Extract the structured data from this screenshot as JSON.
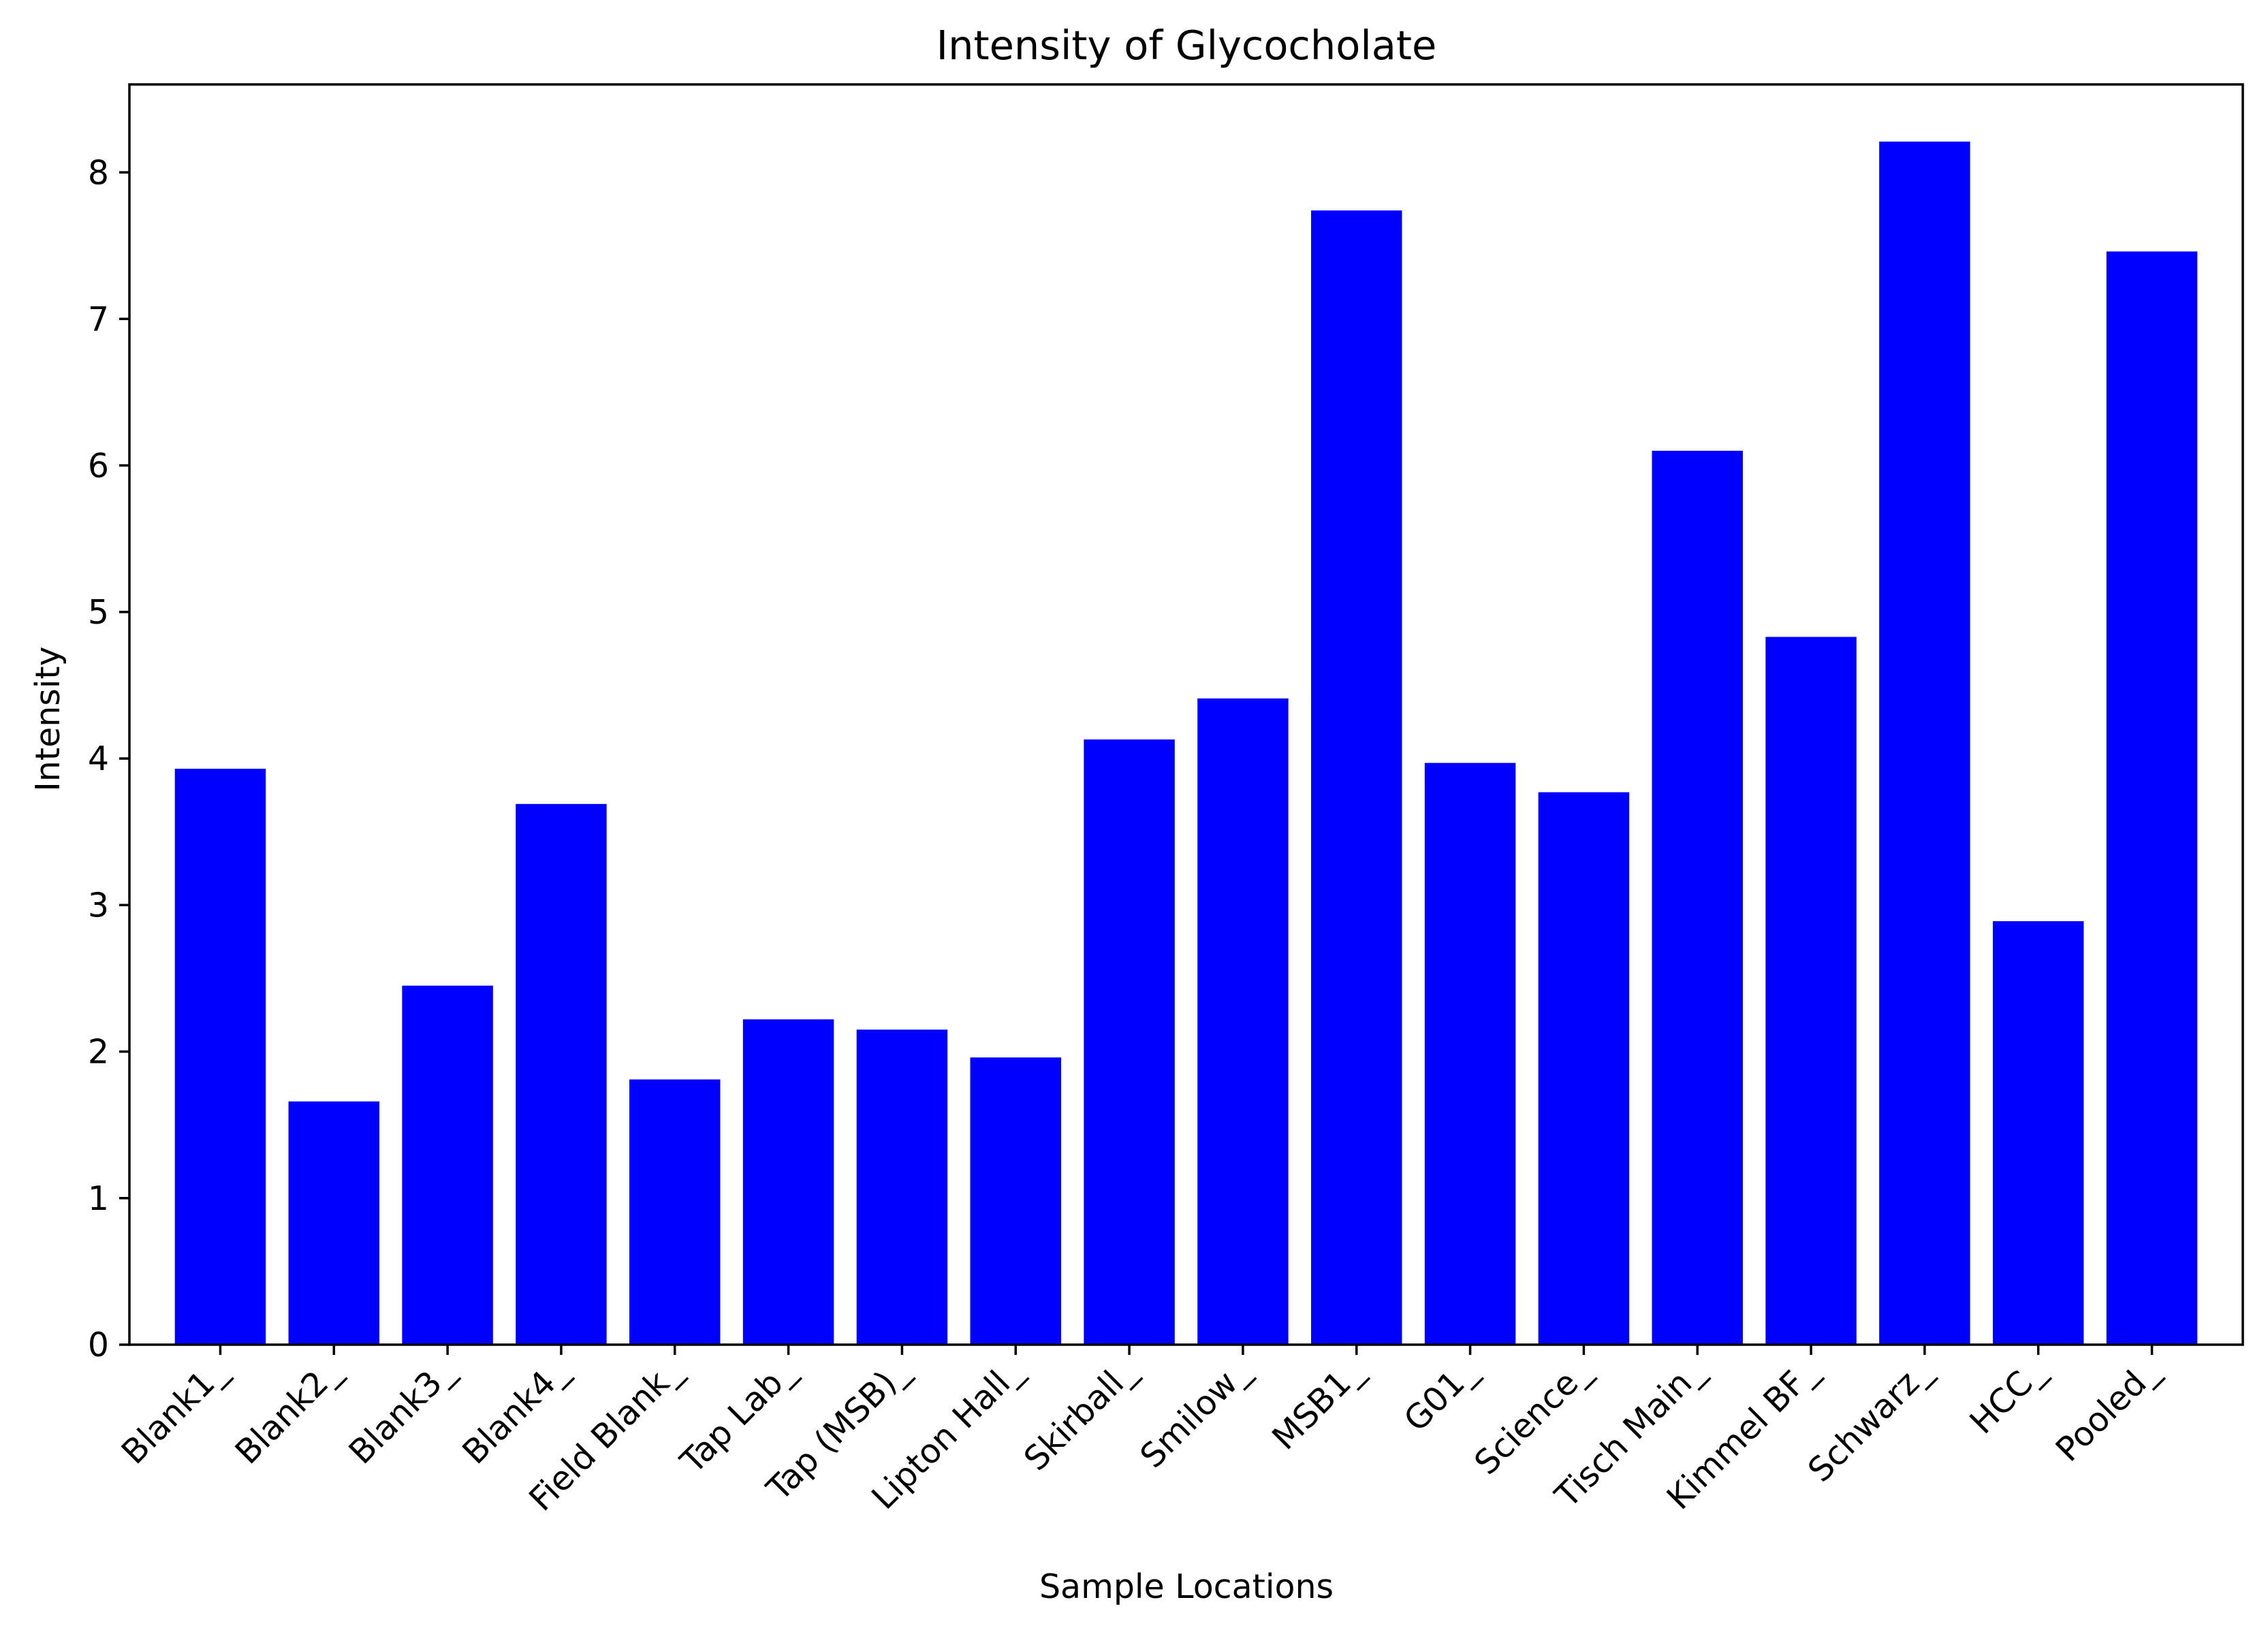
{
  "chart_data": {
    "type": "bar",
    "title": "Intensity of Glycocholate",
    "xlabel": "Sample Locations",
    "ylabel": "Intensity",
    "categories": [
      "Blank1_",
      "Blank2_",
      "Blank3_",
      "Blank4_",
      "Field Blank_",
      "Tap Lab_",
      "Tap (MSB)_",
      "Lipton Hall_",
      "Skirball_",
      "Smilow_",
      "MSB1_",
      "G01_",
      "Science_",
      "Tisch Main_",
      "Kimmel BF_",
      "Schwarz_",
      "HCC_",
      "Pooled_"
    ],
    "values": [
      3.93,
      1.66,
      2.45,
      3.69,
      1.81,
      2.22,
      2.15,
      1.96,
      4.13,
      4.41,
      7.74,
      3.97,
      3.77,
      6.1,
      4.83,
      8.21,
      2.89,
      7.46
    ],
    "ylim": [
      0,
      8.6
    ],
    "yticks": [
      "0",
      "1",
      "2",
      "3",
      "4",
      "5",
      "6",
      "7",
      "8"
    ],
    "bar_color": "#0000ff",
    "grid": false,
    "legend": "none",
    "xtick_rotation": "45 degrees"
  }
}
